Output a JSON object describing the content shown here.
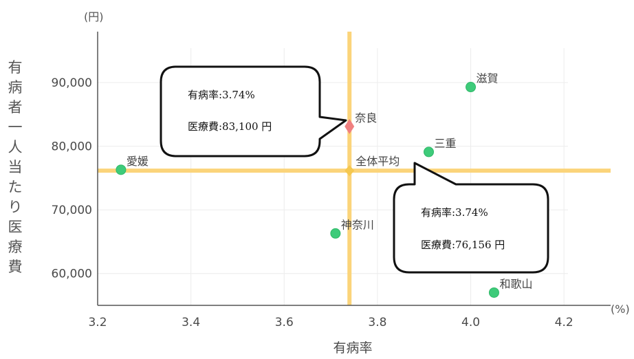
{
  "chart_data": {
    "type": "scatter",
    "title": "",
    "xlabel": "有病率",
    "ylabel": "有病者一人当たり医療費",
    "x_unit": "(%)",
    "y_unit": "(円)",
    "xlim": [
      3.2,
      4.3
    ],
    "ylim": [
      55000,
      98000
    ],
    "x_ticks": [
      "3.2",
      "3.4",
      "3.6",
      "3.8",
      "4.0",
      "4.2"
    ],
    "y_ticks": [
      "60,000",
      "70,000",
      "80,000",
      "90,000"
    ],
    "grid": true,
    "points": [
      {
        "label": "愛媛",
        "x": 3.25,
        "y": 76300,
        "color": "#3ecb7a",
        "shape": "circle"
      },
      {
        "label": "神奈川",
        "x": 3.71,
        "y": 66300,
        "color": "#3ecb7a",
        "shape": "circle"
      },
      {
        "label": "三重",
        "x": 3.91,
        "y": 79100,
        "color": "#3ecb7a",
        "shape": "circle"
      },
      {
        "label": "滋賀",
        "x": 4.0,
        "y": 89300,
        "color": "#3ecb7a",
        "shape": "circle"
      },
      {
        "label": "和歌山",
        "x": 4.05,
        "y": 57000,
        "color": "#3ecb7a",
        "shape": "circle"
      },
      {
        "label": "奈良",
        "x": 3.74,
        "y": 83100,
        "color": "#f08080",
        "shape": "diamond"
      }
    ],
    "average": {
      "label": "全体平均",
      "x": 3.74,
      "y": 76156,
      "color": "#fbd47a"
    },
    "callouts": [
      {
        "target": "奈良",
        "lines": [
          "有病率:3.74%",
          "医療費:83,100 円"
        ]
      },
      {
        "target": "全体平均",
        "lines": [
          "有病率:3.74%",
          "医療費:76,156 円"
        ]
      }
    ]
  }
}
